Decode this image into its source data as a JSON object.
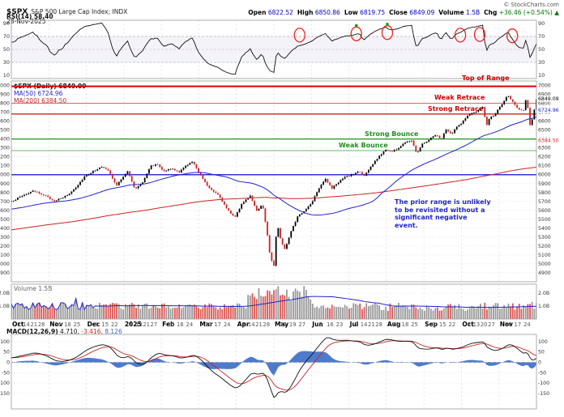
{
  "header": {
    "symbol": "$SPX",
    "index_name": "S&P 500 Large Cap Index; INDX",
    "date": "28-Nov-2025",
    "credit": "© StockCharts.com",
    "quote": [
      {
        "label": "Open",
        "value": "6822.52"
      },
      {
        "label": "High",
        "value": "6850.86"
      },
      {
        "label": "Low",
        "value": "6819.75"
      },
      {
        "label": "Close",
        "value": "6849.09"
      },
      {
        "label": "Volume",
        "value": "1.5B"
      },
      {
        "label": "Chg",
        "value": "+36.46 (+0.54%) ▲"
      }
    ]
  },
  "chart_data": {
    "type": "candlestick",
    "symbol": "$SPX",
    "period": "Daily",
    "title": "$SPX S&P 500 Large Cap Index (Daily) with RSI, Volume and MACD",
    "n_candles": 245,
    "colors": {
      "up": "#000000",
      "down": "#cc2222",
      "ma50": "#2222cc",
      "ma200": "#cc2222",
      "rsi": "#111111",
      "macd_line": "#111111",
      "macd_signal": "#cc2222",
      "macd_hist": "#3b6cc5",
      "volume_up": "#999999",
      "volume_down": "#dd5555",
      "level_red": "#cc0000",
      "level_green": "#1e8f1e",
      "prior_range_blue": "#3333dd"
    },
    "close_keypoints": [
      [
        0.0,
        5700
      ],
      [
        0.02,
        5762
      ],
      [
        0.04,
        5815
      ],
      [
        0.06,
        5780
      ],
      [
        0.08,
        5708
      ],
      [
        0.095,
        5730
      ],
      [
        0.11,
        5785
      ],
      [
        0.125,
        5873
      ],
      [
        0.14,
        5985
      ],
      [
        0.155,
        6032
      ],
      [
        0.17,
        6090
      ],
      [
        0.185,
        6048
      ],
      [
        0.2,
        5872
      ],
      [
        0.212,
        5975
      ],
      [
        0.222,
        6038
      ],
      [
        0.235,
        5835
      ],
      [
        0.25,
        5918
      ],
      [
        0.265,
        6098
      ],
      [
        0.278,
        6118
      ],
      [
        0.29,
        6042
      ],
      [
        0.305,
        6066
      ],
      [
        0.32,
        6028
      ],
      [
        0.335,
        6115
      ],
      [
        0.345,
        6144
      ],
      [
        0.36,
        6002
      ],
      [
        0.375,
        5861
      ],
      [
        0.395,
        5772
      ],
      [
        0.41,
        5618
      ],
      [
        0.425,
        5523
      ],
      [
        0.44,
        5682
      ],
      [
        0.455,
        5767
      ],
      [
        0.468,
        5582
      ],
      [
        0.478,
        5672
      ],
      [
        0.486,
        5396
      ],
      [
        0.493,
        5074
      ],
      [
        0.5,
        4985
      ],
      [
        0.506,
        5458
      ],
      [
        0.513,
        5268
      ],
      [
        0.521,
        5160
      ],
      [
        0.533,
        5378
      ],
      [
        0.545,
        5527
      ],
      [
        0.56,
        5605
      ],
      [
        0.572,
        5688
      ],
      [
        0.585,
        5845
      ],
      [
        0.598,
        5958
      ],
      [
        0.61,
        5843
      ],
      [
        0.622,
        5913
      ],
      [
        0.635,
        5972
      ],
      [
        0.65,
        6002
      ],
      [
        0.662,
        6040
      ],
      [
        0.672,
        5984
      ],
      [
        0.685,
        6094
      ],
      [
        0.7,
        6204
      ],
      [
        0.712,
        6280
      ],
      [
        0.725,
        6260
      ],
      [
        0.738,
        6299
      ],
      [
        0.75,
        6364
      ],
      [
        0.762,
        6390
      ],
      [
        0.772,
        6240
      ],
      [
        0.782,
        6342
      ],
      [
        0.795,
        6390
      ],
      [
        0.808,
        6450
      ],
      [
        0.818,
        6396
      ],
      [
        0.828,
        6502
      ],
      [
        0.838,
        6449
      ],
      [
        0.848,
        6533
      ],
      [
        0.858,
        6585
      ],
      [
        0.868,
        6657
      ],
      [
        0.878,
        6689
      ],
      [
        0.888,
        6716
      ],
      [
        0.898,
        6754
      ],
      [
        0.905,
        6553
      ],
      [
        0.912,
        6655
      ],
      [
        0.92,
        6665
      ],
      [
        0.928,
        6740
      ],
      [
        0.936,
        6793
      ],
      [
        0.944,
        6891
      ],
      [
        0.952,
        6841
      ],
      [
        0.96,
        6770
      ],
      [
        0.968,
        6723
      ],
      [
        0.976,
        6721
      ],
      [
        0.98,
        6851
      ],
      [
        0.984,
        6735
      ],
      [
        0.987,
        6539
      ],
      [
        0.991,
        6603
      ],
      [
        0.995,
        6706
      ],
      [
        1.0,
        6849
      ]
    ],
    "rsi": {
      "label": "RSI(14) 58.40",
      "range": [
        5,
        95
      ],
      "ticks": [
        90,
        70,
        50,
        30,
        10
      ],
      "overbought": 70,
      "oversold": 30,
      "circles": [
        {
          "t": 0.549,
          "v": 72
        },
        {
          "t": 0.657,
          "v": 74
        },
        {
          "t": 0.716,
          "v": 76
        },
        {
          "t": 0.855,
          "v": 72
        },
        {
          "t": 0.892,
          "v": 73
        },
        {
          "t": 0.954,
          "v": 71
        }
      ],
      "markers": [
        {
          "t": 0.657,
          "v": 87
        },
        {
          "t": 0.716,
          "v": 89
        }
      ]
    },
    "price": {
      "label": "$SPX (Daily) 6849.09",
      "ma50_label": "MA(50) 6724.96",
      "ma200_label": "MA(200) 6384.50",
      "last_close": 6849.09,
      "ma50": 6724.96,
      "ma200": 6384.5,
      "range": [
        4800,
        7050
      ],
      "ticks_min": 4900,
      "ticks_max": 7000,
      "ticks_step": 100,
      "levels": [
        {
          "name": "top-of-range",
          "label": "Top of Range",
          "value": 6990,
          "color": "#dd0000",
          "width": 2
        },
        {
          "name": "weak-retrace",
          "label": "Weak Retrace",
          "value": 6800,
          "color": "#e86a6a",
          "width": 1.2
        },
        {
          "name": "strong-retrace",
          "label": "Strong Retrace",
          "value": 6680,
          "color": "#cc2222",
          "width": 1.4
        },
        {
          "name": "strong-bounce",
          "label": "Strong Bounce",
          "value": 6400,
          "color": "#2e9e2e",
          "width": 1.4
        },
        {
          "name": "weak-bounce",
          "label": "Weak Bounce",
          "value": 6270,
          "color": "#7fc97f",
          "width": 1.2
        },
        {
          "name": "prior-range",
          "label": "",
          "value": 6000,
          "color": "#3333dd",
          "width": 1.5
        }
      ],
      "note": "The prior range is unlikely\nto be revisited without a\nsignificant negative\nevent."
    },
    "volume": {
      "label": "Volume 1.5B",
      "range": [
        0,
        2.7
      ],
      "ticks": [
        {
          "v": 2,
          "label": "2.0B"
        },
        {
          "v": 1,
          "label": "1.0B"
        }
      ]
    },
    "macd": {
      "name_label": "MACD(12,26,9)",
      "values": [
        "4.710,",
        "-3.416,",
        "8.126"
      ],
      "range": [
        -225,
        135
      ],
      "ticks": [
        100,
        50,
        0,
        -50,
        -100,
        -150
      ]
    },
    "xaxis": {
      "months": [
        {
          "label": "Oct",
          "weeks": [
            "7",
            "14",
            "21",
            "28"
          ]
        },
        {
          "label": "Nov",
          "weeks": [
            "11",
            "18",
            "25"
          ]
        },
        {
          "label": "Dec",
          "weeks": [
            "8",
            "15",
            "22"
          ]
        },
        {
          "label": "2025",
          "weeks": [
            "6",
            "13",
            "21",
            "27"
          ]
        },
        {
          "label": "Feb",
          "weeks": [
            "10",
            "18",
            "24"
          ]
        },
        {
          "label": "Mar",
          "weeks": [
            "10",
            "17",
            "24"
          ]
        },
        {
          "label": "Apr",
          "weeks": [
            "7",
            "14",
            "21",
            "28"
          ]
        },
        {
          "label": "May",
          "weeks": [
            "12",
            "19",
            "27"
          ]
        },
        {
          "label": "Jun",
          "weeks": [
            "9",
            "16",
            "23"
          ]
        },
        {
          "label": "Jul",
          "weeks": [
            "7",
            "14",
            "21",
            "28"
          ]
        },
        {
          "label": "Aug",
          "weeks": [
            "11",
            "18",
            "25"
          ]
        },
        {
          "label": "Sep",
          "weeks": [
            "8",
            "15",
            "22"
          ]
        },
        {
          "label": "Oct",
          "weeks": [
            "6",
            "13",
            "20",
            "27"
          ]
        },
        {
          "label": "Nov",
          "weeks": [
            "10",
            "17",
            "24"
          ]
        }
      ]
    }
  }
}
